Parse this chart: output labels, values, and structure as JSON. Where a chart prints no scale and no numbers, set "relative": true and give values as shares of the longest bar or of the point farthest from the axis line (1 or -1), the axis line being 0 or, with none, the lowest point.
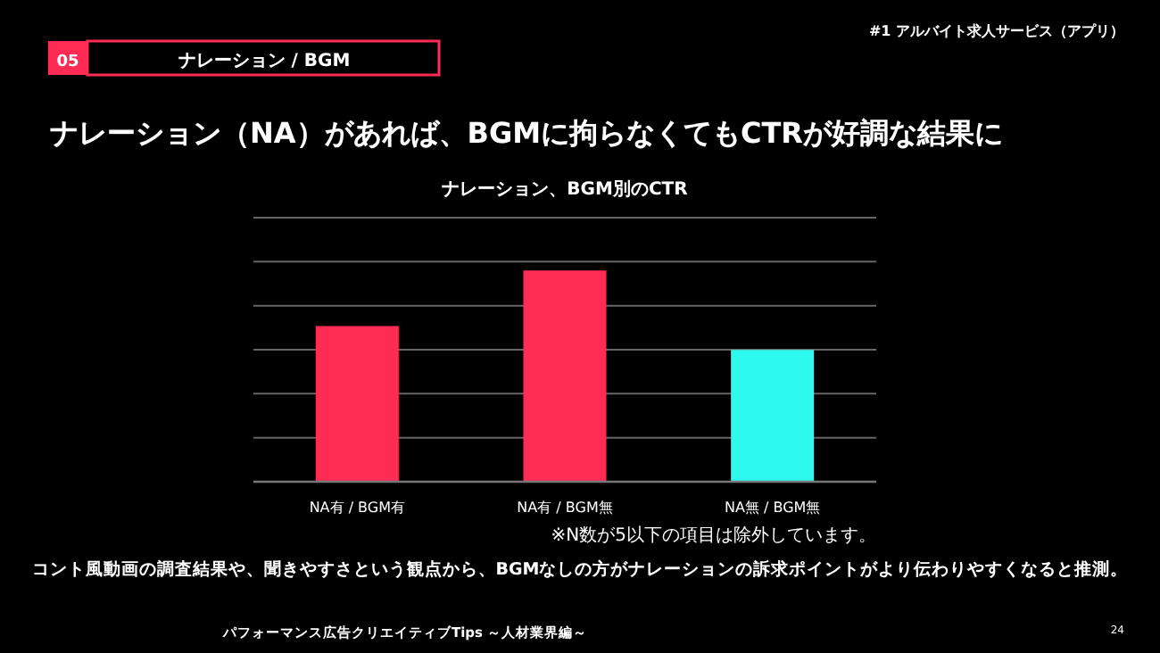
{
  "chart_data": {
    "type": "bar",
    "title": "ナレーション、BGM別のCTR",
    "categories": [
      "NA有 / BGM有",
      "NA有 / BGM無",
      "NA無 / BGM無"
    ],
    "values": [
      0.737,
      1,
      0.624
    ],
    "colors": [
      "#fe2c55",
      "#fe2c55",
      "#2ef9ee"
    ],
    "relative": true,
    "grid": "y",
    "annotations": [
      "#1 アルバイト求人サービス（アプリ）",
      "05",
      "ナレーション / BGM",
      "ナレーション（NA）があれば、BGMに拘らなくてもCTRが好調な結果に",
      "※N数が5以下の項目は除外しています。",
      "コント風動画の調査結果や、聞きやすさという観点から、BGMなしの方がナレーションの訴求ポイントがより伝わりやすくなると推測。",
      "パフォーマンス広告クリエイティブTips ～人材業界編～",
      "24"
    ]
  }
}
